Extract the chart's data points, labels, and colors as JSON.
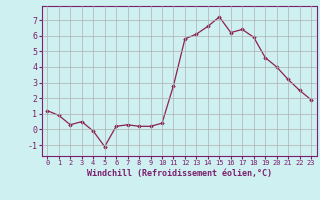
{
  "x": [
    0,
    1,
    2,
    3,
    4,
    5,
    6,
    7,
    8,
    9,
    10,
    11,
    12,
    13,
    14,
    15,
    16,
    17,
    18,
    19,
    20,
    21,
    22,
    23
  ],
  "y": [
    1.2,
    0.9,
    0.3,
    0.5,
    -0.1,
    -1.1,
    0.2,
    0.3,
    0.2,
    0.2,
    0.4,
    2.8,
    5.8,
    6.1,
    6.6,
    7.2,
    6.2,
    6.4,
    5.9,
    4.6,
    4.0,
    3.2,
    2.5,
    1.9
  ],
  "line_color": "#8B2252",
  "marker": "D",
  "markersize": 1.8,
  "linewidth": 0.9,
  "xlabel": "Windchill (Refroidissement éolien,°C)",
  "xlabel_fontsize": 6.0,
  "ylabel_ticks": [
    -1,
    0,
    1,
    2,
    3,
    4,
    5,
    6,
    7
  ],
  "xlim": [
    -0.5,
    23.5
  ],
  "ylim": [
    -1.7,
    7.9
  ],
  "bg_color": "#cef0f0",
  "grid_color": "#b0b0b0",
  "tick_color": "#7B1E6E",
  "tick_fontsize": 6.0,
  "xtick_fontsize": 5.0
}
